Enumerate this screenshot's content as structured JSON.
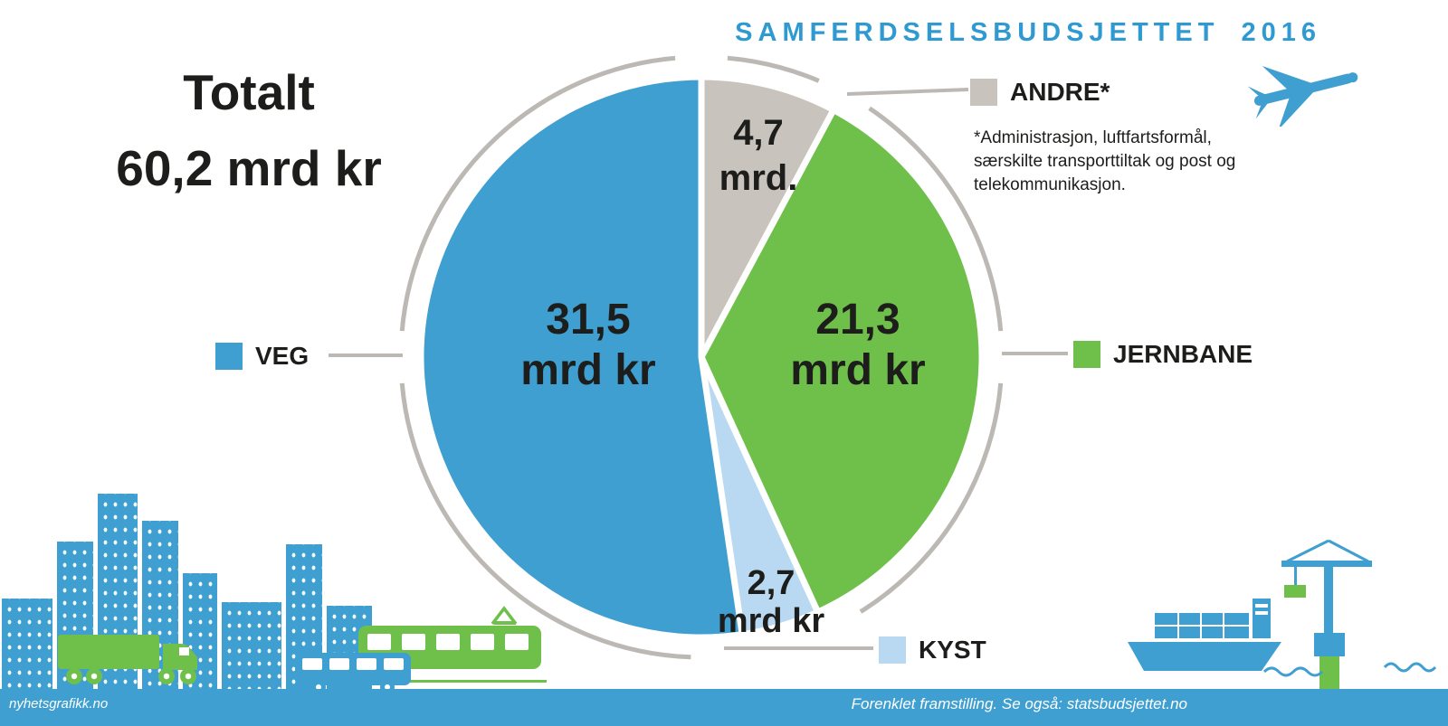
{
  "header": {
    "title": "SAMFERDSELSBUDSJETTET 2016"
  },
  "total": {
    "line1": "Totalt",
    "line2": "60,2 mrd kr"
  },
  "chart_data": {
    "type": "pie",
    "title": "SAMFERDSELSBUDSJETTET 2016",
    "total_value": 60.2,
    "total_label": "Totalt 60,2 mrd kr",
    "unit": "mrd kr",
    "direction": "clockwise",
    "start_angle_deg": 0,
    "slices": [
      {
        "label": "ANDRE*",
        "value": 4.7,
        "value_label": "4,7",
        "unit_label": "mrd.",
        "color": "#c8c3bc"
      },
      {
        "label": "JERNBANE",
        "value": 21.3,
        "value_label": "21,3",
        "unit_label": "mrd kr",
        "color": "#6fbf4b"
      },
      {
        "label": "KYST",
        "value": 2.7,
        "value_label": "2,7",
        "unit_label": "mrd kr",
        "color": "#b8d9f1"
      },
      {
        "label": "VEG",
        "value": 31.5,
        "value_label": "31,5",
        "unit_label": "mrd kr",
        "color": "#3f9fd0"
      }
    ],
    "footnote": "*Administrasjon, luftfartsformål, særskilte transporttiltak og post og telekommunikasjon."
  },
  "footer": {
    "left": "nyhetsgrafikk.no",
    "right": "Forenklet framstilling. Se også: statsbudsjettet.no"
  },
  "colors": {
    "blue": "#3f9fd0",
    "green": "#6fbf4b",
    "light_blue": "#b8d9f1",
    "gray": "#c8c3bc",
    "ring_gray": "#bcb8b4",
    "text": "#1d1d1b",
    "footer_bar": "#3f9fd0",
    "title_blue": "#2f9ad2"
  },
  "decorations": [
    "airplane-icon",
    "city-skyline",
    "truck-icon",
    "tram-icon",
    "bus-icon",
    "cargo-ship-icon",
    "harbor-crane-icon",
    "waves"
  ]
}
